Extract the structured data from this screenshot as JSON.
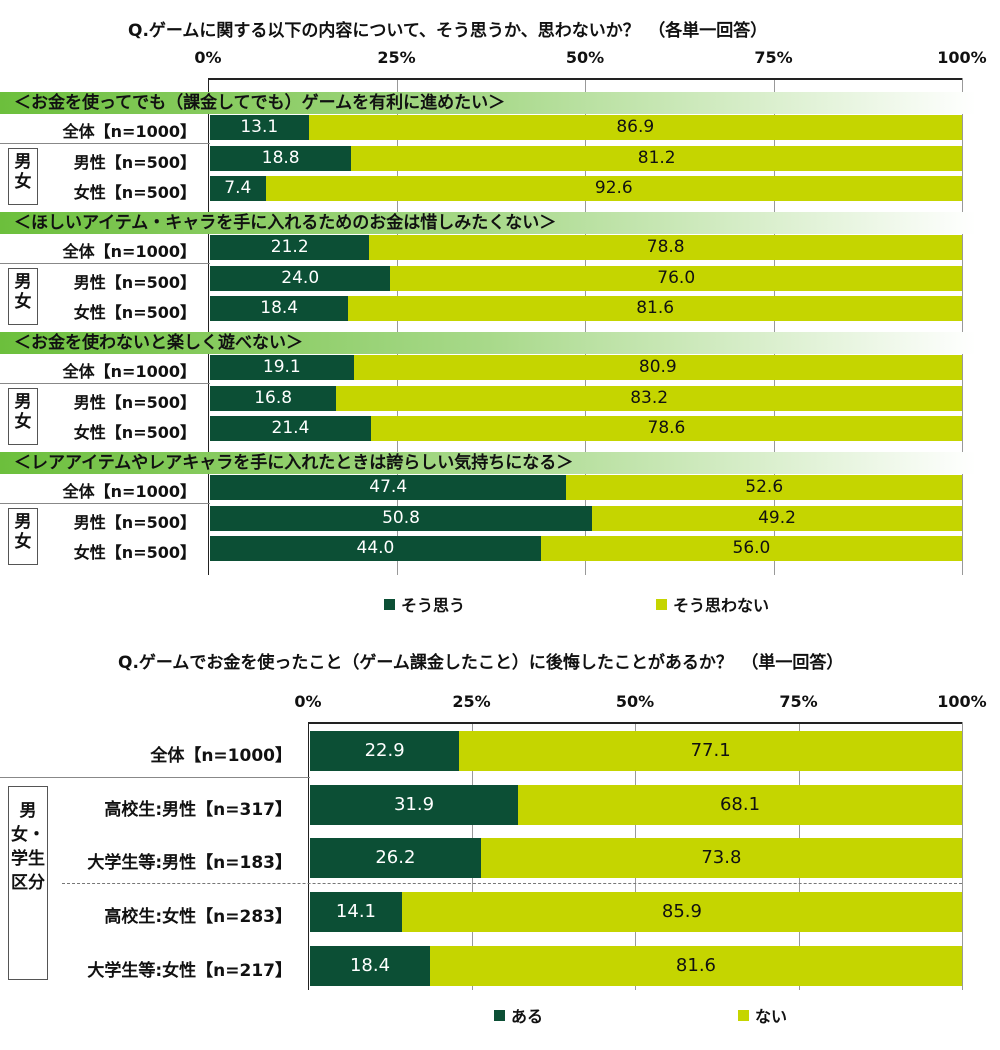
{
  "colors": {
    "yes": "#0c4f35",
    "no": "#c5d500"
  },
  "chart_data": [
    {
      "type": "bar",
      "orientation": "horizontal",
      "stacked": true,
      "title": "Q.ゲームに関する以下の内容について、そう思うか、思わないか？　（各単一回答）",
      "xlim": [
        0,
        100
      ],
      "ticks": [
        "0%",
        "25%",
        "50%",
        "75%",
        "100%"
      ],
      "legend": [
        "そう思う",
        "そう思わない"
      ],
      "legend_position": "bottom",
      "group_label": "男女",
      "sections": [
        {
          "title": "＜お金を使ってでも（課金してでも）ゲームを有利に進めたい＞",
          "rows": [
            {
              "label": "全体【n=1000】",
              "yes": 13.1,
              "no": 86.9
            },
            {
              "label": "男性【n=500】",
              "yes": 18.8,
              "no": 81.2
            },
            {
              "label": "女性【n=500】",
              "yes": 7.4,
              "no": 92.6
            }
          ]
        },
        {
          "title": "＜ほしいアイテム・キャラを手に入れるためのお金は惜しみたくない＞",
          "rows": [
            {
              "label": "全体【n=1000】",
              "yes": 21.2,
              "no": 78.8
            },
            {
              "label": "男性【n=500】",
              "yes": 24.0,
              "no": 76.0
            },
            {
              "label": "女性【n=500】",
              "yes": 18.4,
              "no": 81.6
            }
          ]
        },
        {
          "title": "＜お金を使わないと楽しく遊べない＞",
          "rows": [
            {
              "label": "全体【n=1000】",
              "yes": 19.1,
              "no": 80.9
            },
            {
              "label": "男性【n=500】",
              "yes": 16.8,
              "no": 83.2
            },
            {
              "label": "女性【n=500】",
              "yes": 21.4,
              "no": 78.6
            }
          ]
        },
        {
          "title": "＜レアアイテムやレアキャラを手に入れたときは誇らしい気持ちになる＞",
          "rows": [
            {
              "label": "全体【n=1000】",
              "yes": 47.4,
              "no": 52.6
            },
            {
              "label": "男性【n=500】",
              "yes": 50.8,
              "no": 49.2
            },
            {
              "label": "女性【n=500】",
              "yes": 44.0,
              "no": 56.0
            }
          ]
        }
      ]
    },
    {
      "type": "bar",
      "orientation": "horizontal",
      "stacked": true,
      "title": "Q.ゲームでお金を使ったこと（ゲーム課金したこと）に後悔したことがあるか？　（単一回答）",
      "xlim": [
        0,
        100
      ],
      "ticks": [
        "0%",
        "25%",
        "50%",
        "75%",
        "100%"
      ],
      "legend": [
        "ある",
        "ない"
      ],
      "legend_position": "bottom",
      "group_label": "男女・学生区分",
      "rows": [
        {
          "label": "全体【n=1000】",
          "yes": 22.9,
          "no": 77.1
        },
        {
          "label": "高校生:男性【n=317】",
          "yes": 31.9,
          "no": 68.1
        },
        {
          "label": "大学生等:男性【n=183】",
          "yes": 26.2,
          "no": 73.8
        },
        {
          "label": "高校生:女性【n=283】",
          "yes": 14.1,
          "no": 85.9
        },
        {
          "label": "大学生等:女性【n=217】",
          "yes": 18.4,
          "no": 81.6
        }
      ]
    }
  ]
}
